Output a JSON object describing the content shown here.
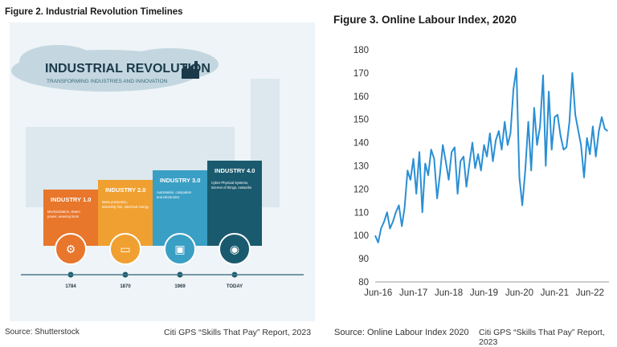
{
  "figure2": {
    "title": "Figure 2. Industrial Revolution Timelines",
    "banner_title": "INDUSTRIAL REVOLUTION",
    "banner_subtitle": "TRANSFORMING INDUSTRIES AND INNOVATION",
    "stages": [
      {
        "label": "INDUSTRY 1.0",
        "desc1": "Mechanization, steam",
        "desc2": "power, weaving loom",
        "year": "1784",
        "color": "#e8762b",
        "icon": "gears-icon"
      },
      {
        "label": "INDUSTRY 2.0",
        "desc1": "Mass production,",
        "desc2": "assembly line, electrical energy",
        "year": "1870",
        "color": "#f0a030",
        "icon": "conveyor-icon"
      },
      {
        "label": "INDUSTRY 3.0",
        "desc1": "Automation, computers",
        "desc2": "and electronics",
        "year": "1969",
        "color": "#3a9fc4",
        "icon": "chip-icon"
      },
      {
        "label": "INDUSTRY 4.0",
        "desc1": "Cyber Physical Systems,",
        "desc2": "internet of things, networks",
        "year": "TODAY",
        "color": "#1a5a6e",
        "icon": "wifi-icon"
      }
    ],
    "source": "Source: Shutterstock",
    "report": "Citi GPS “Skills That Pay” Report, 2023"
  },
  "figure3": {
    "title": "Figure 3. Online Labour Index, 2020",
    "source": "Source: Online Labour Index 2020",
    "report": "Citi GPS “Skills That Pay” Report, 2023"
  },
  "chart_data": {
    "type": "line",
    "title": "Figure 3. Online Labour Index, 2020",
    "xlabel": "",
    "ylabel": "",
    "x_ticks": [
      "Jun-16",
      "Jun-17",
      "Jun-18",
      "Jun-19",
      "Jun-20",
      "Jun-21",
      "Jun-22"
    ],
    "ylim": [
      80,
      180
    ],
    "y_ticks": [
      80,
      90,
      100,
      110,
      120,
      130,
      140,
      150,
      160,
      170,
      180
    ],
    "grid": false,
    "color": "#2a8fd4",
    "series": [
      {
        "x": [
          "2016-05-01",
          "2016-06-01",
          "2016-07-01",
          "2016-08-01",
          "2016-09-01",
          "2016-10-01",
          "2016-11-01",
          "2016-12-01",
          "2017-01-01",
          "2017-02-01",
          "2017-03-01",
          "2017-04-01",
          "2017-05-01",
          "2017-06-01",
          "2017-07-01",
          "2017-08-01",
          "2017-09-01",
          "2017-10-01",
          "2017-11-01",
          "2017-12-01",
          "2018-01-01",
          "2018-02-01",
          "2018-03-01",
          "2018-04-01",
          "2018-05-01",
          "2018-06-01",
          "2018-07-01",
          "2018-08-01",
          "2018-09-01",
          "2018-10-01",
          "2018-11-01",
          "2018-12-01",
          "2019-01-01",
          "2019-02-01",
          "2019-03-01",
          "2019-04-01",
          "2019-05-01",
          "2019-06-01",
          "2019-07-01",
          "2019-08-01",
          "2019-09-01",
          "2019-10-01",
          "2019-11-01",
          "2019-12-01",
          "2020-01-01",
          "2020-02-01",
          "2020-03-01",
          "2020-04-01",
          "2020-05-01",
          "2020-06-01",
          "2020-07-01",
          "2020-08-01",
          "2020-09-01",
          "2020-10-01",
          "2020-11-01",
          "2020-12-01",
          "2021-01-01",
          "2021-02-01",
          "2021-03-01",
          "2021-04-01",
          "2021-05-01",
          "2021-06-01",
          "2021-07-01",
          "2021-08-01",
          "2021-09-01",
          "2021-10-01",
          "2021-11-01",
          "2021-12-01",
          "2022-01-01",
          "2022-02-01",
          "2022-03-01",
          "2022-04-01",
          "2022-05-01",
          "2022-06-01",
          "2022-07-01",
          "2022-08-01",
          "2022-09-01",
          "2022-10-01",
          "2022-11-01",
          "2022-12-01"
        ],
        "values": [
          100,
          97,
          103,
          106,
          110,
          103,
          106,
          110,
          113,
          104,
          112,
          128,
          124,
          133,
          118,
          136,
          110,
          131,
          126,
          137,
          133,
          116,
          126,
          139,
          132,
          124,
          136,
          138,
          118,
          132,
          134,
          121,
          131,
          140,
          129,
          135,
          128,
          139,
          134,
          144,
          132,
          141,
          145,
          137,
          149,
          139,
          144,
          163,
          172,
          125,
          113,
          128,
          149,
          128,
          155,
          139,
          147,
          169,
          130,
          162,
          137,
          151,
          152,
          143,
          137,
          138,
          149,
          170,
          152,
          145,
          139,
          125,
          142,
          135,
          147,
          134,
          145,
          151,
          146,
          145
        ]
      }
    ]
  }
}
